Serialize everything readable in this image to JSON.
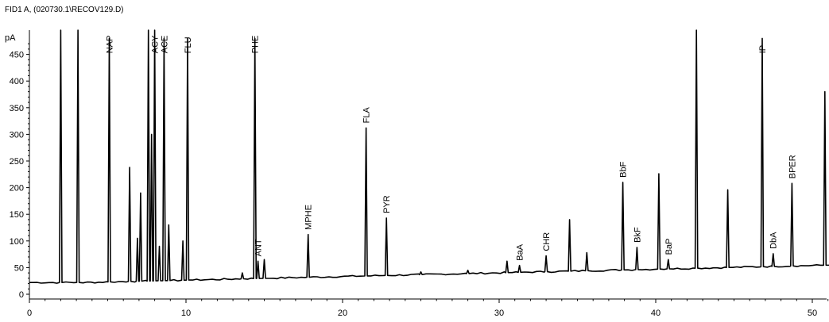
{
  "chart_data": {
    "type": "line",
    "title": "FID1 A, (020730.1\\RECOV129.D)",
    "ylabel": "pA",
    "xlabel": "",
    "xlim": [
      0,
      51.5
    ],
    "ylim": [
      -5,
      475
    ],
    "xticks": [
      0,
      10,
      20,
      30,
      40,
      50
    ],
    "yticks": [
      0,
      50,
      100,
      150,
      200,
      250,
      300,
      350,
      400,
      450
    ],
    "baseline": {
      "start": 22,
      "end": 55
    },
    "peaks": [
      {
        "x": 2.0,
        "y": 600
      },
      {
        "x": 3.1,
        "y": 600
      },
      {
        "x": 5.1,
        "y": 480,
        "label": "NAP"
      },
      {
        "x": 6.4,
        "y": 238
      },
      {
        "x": 6.9,
        "y": 105
      },
      {
        "x": 7.1,
        "y": 190
      },
      {
        "x": 7.6,
        "y": 600
      },
      {
        "x": 7.8,
        "y": 300
      },
      {
        "x": 8.0,
        "y": 600,
        "label": "ACY"
      },
      {
        "x": 8.3,
        "y": 90
      },
      {
        "x": 8.6,
        "y": 480,
        "label": "ACE"
      },
      {
        "x": 8.9,
        "y": 130
      },
      {
        "x": 9.8,
        "y": 100
      },
      {
        "x": 10.1,
        "y": 480,
        "label": "FLU"
      },
      {
        "x": 13.6,
        "y": 40
      },
      {
        "x": 14.4,
        "y": 480,
        "label": "PHE"
      },
      {
        "x": 14.6,
        "y": 62,
        "label": "ANT"
      },
      {
        "x": 15.0,
        "y": 65
      },
      {
        "x": 17.8,
        "y": 112,
        "label": "MPHE"
      },
      {
        "x": 21.5,
        "y": 312,
        "label": "FLA"
      },
      {
        "x": 22.8,
        "y": 143,
        "label": "PYR"
      },
      {
        "x": 25.0,
        "y": 42
      },
      {
        "x": 28.0,
        "y": 45
      },
      {
        "x": 30.5,
        "y": 62
      },
      {
        "x": 31.3,
        "y": 54,
        "label": "BaA"
      },
      {
        "x": 33.0,
        "y": 72,
        "label": "CHR"
      },
      {
        "x": 34.5,
        "y": 140
      },
      {
        "x": 35.6,
        "y": 78
      },
      {
        "x": 37.9,
        "y": 210,
        "label": "BbF"
      },
      {
        "x": 38.8,
        "y": 88,
        "label": "BkF"
      },
      {
        "x": 40.2,
        "y": 226
      },
      {
        "x": 40.8,
        "y": 65,
        "label": "BaP"
      },
      {
        "x": 42.6,
        "y": 600
      },
      {
        "x": 44.6,
        "y": 196
      },
      {
        "x": 46.8,
        "y": 480,
        "label": "IP"
      },
      {
        "x": 47.5,
        "y": 76,
        "label": "DbA"
      },
      {
        "x": 48.7,
        "y": 208,
        "label": "BPER"
      },
      {
        "x": 50.8,
        "y": 380
      }
    ]
  }
}
